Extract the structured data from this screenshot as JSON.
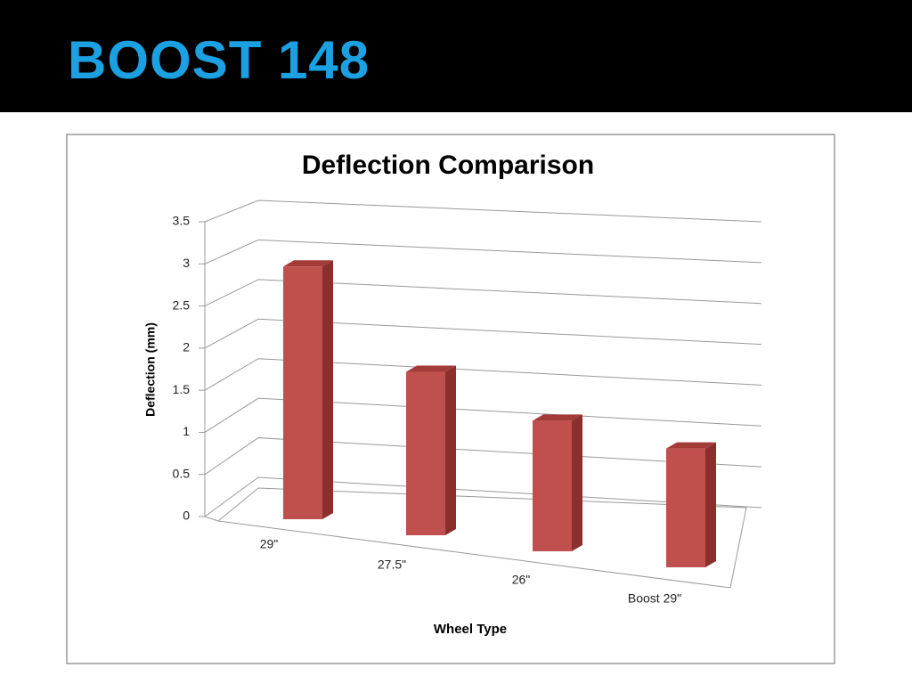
{
  "slide_title": "BOOST 148",
  "chart_data": {
    "type": "bar3d",
    "title": "Deflection Comparison",
    "x_label": "Wheel Type",
    "y_label": "Deflection (mm)",
    "categories": [
      "29\"",
      "27.5\"",
      "26\"",
      "Boost  29\""
    ],
    "values": [
      3.0,
      2.0,
      1.65,
      1.55
    ],
    "color": "#c0504d",
    "ylim": [
      0,
      3.5
    ],
    "yticks": [
      0,
      0.5,
      1,
      1.5,
      2,
      2.5,
      3,
      3.5
    ],
    "grid": true
  }
}
